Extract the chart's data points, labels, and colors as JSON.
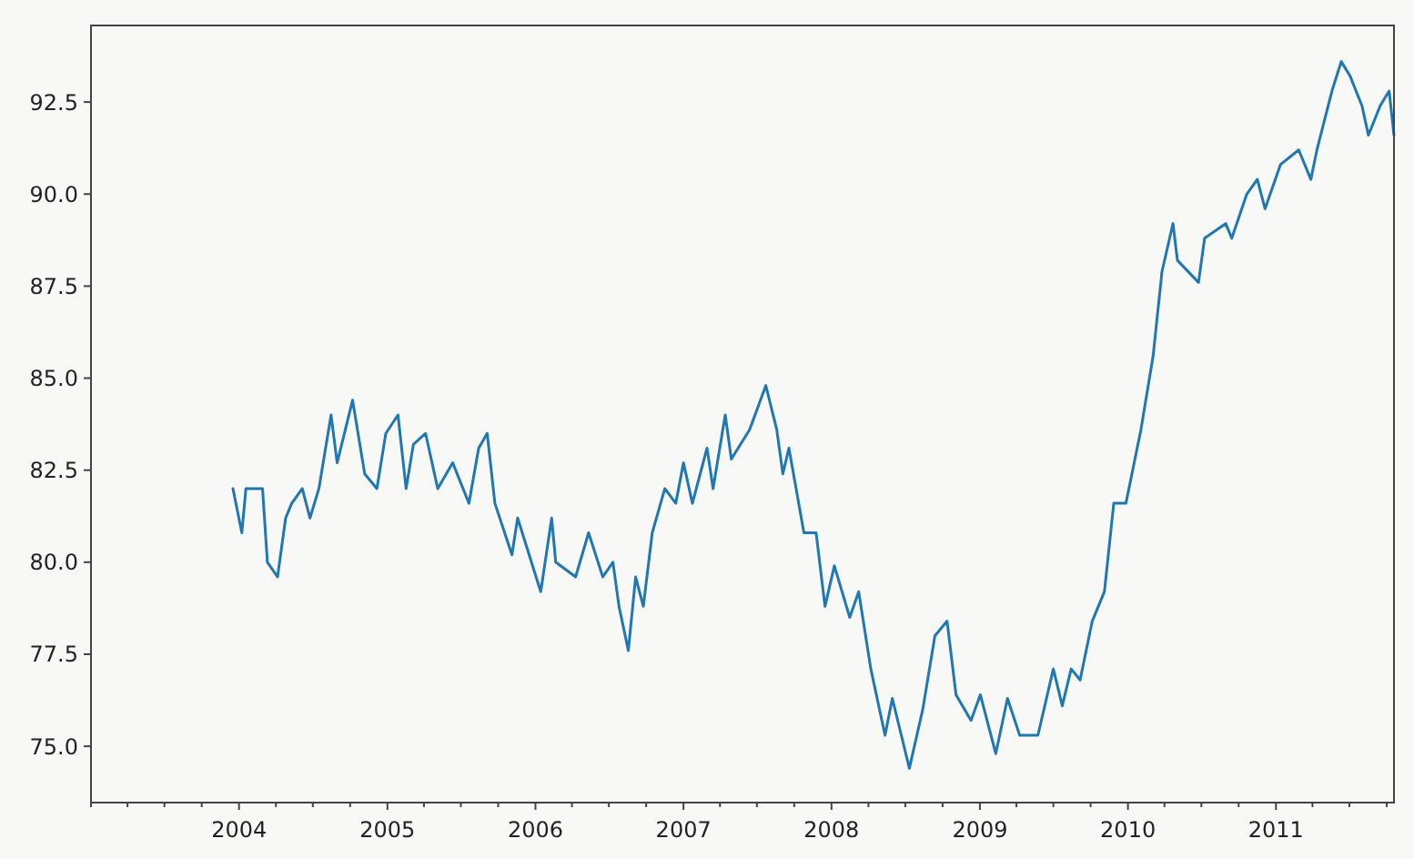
{
  "chart_data": {
    "type": "line",
    "x": [
      "2003-12-17",
      "2004-01-08",
      "2004-01-18",
      "2004-02-28",
      "2004-03-11",
      "2004-04-05",
      "2004-04-25",
      "2004-05-10",
      "2004-06-05",
      "2004-06-24",
      "2004-07-16",
      "2004-08-15",
      "2004-08-30",
      "2004-10-07",
      "2004-11-06",
      "2004-12-06",
      "2004-12-28",
      "2005-01-27",
      "2005-02-16",
      "2005-03-06",
      "2005-04-05",
      "2005-05-05",
      "2005-06-11",
      "2005-07-21",
      "2005-08-14",
      "2005-09-04",
      "2005-09-23",
      "2005-11-04",
      "2005-11-18",
      "2006-01-14",
      "2006-02-10",
      "2006-02-20",
      "2006-04-10",
      "2006-05-12",
      "2006-06-16",
      "2006-07-11",
      "2006-07-26",
      "2006-08-18",
      "2006-09-05",
      "2006-09-24",
      "2006-10-16",
      "2006-11-16",
      "2006-12-13",
      "2007-01-01",
      "2007-01-23",
      "2007-02-28",
      "2007-03-15",
      "2007-04-14",
      "2007-04-29",
      "2007-06-13",
      "2007-07-23",
      "2007-08-19",
      "2007-09-03",
      "2007-09-18",
      "2007-10-25",
      "2007-11-24",
      "2007-12-16",
      "2008-01-08",
      "2008-02-15",
      "2008-03-08",
      "2008-04-07",
      "2008-05-12",
      "2008-05-30",
      "2008-07-11",
      "2008-08-13",
      "2008-09-12",
      "2008-10-12",
      "2008-11-03",
      "2008-12-10",
      "2009-01-02",
      "2009-02-09",
      "2009-03-10",
      "2009-04-09",
      "2009-05-24",
      "2009-07-01",
      "2009-07-23",
      "2009-08-14",
      "2009-09-05",
      "2009-10-05",
      "2009-11-04",
      "2009-11-27",
      "2009-12-27",
      "2010-02-02",
      "2010-03-04",
      "2010-03-26",
      "2010-04-22",
      "2010-05-03",
      "2010-06-24",
      "2010-07-09",
      "2010-08-30",
      "2010-09-14",
      "2010-10-21",
      "2010-11-16",
      "2010-12-05",
      "2011-01-12",
      "2011-02-26",
      "2011-03-28",
      "2011-04-12",
      "2011-05-19",
      "2011-06-11",
      "2011-07-03",
      "2011-08-01",
      "2011-08-17",
      "2011-09-15",
      "2011-10-07",
      "2011-10-19"
    ],
    "series": [
      {
        "color": "#1f77b4",
        "values": [
          82.0,
          80.8,
          82.0,
          82.0,
          80.0,
          79.6,
          81.2,
          81.6,
          82.0,
          81.2,
          82.0,
          84.0,
          82.7,
          84.4,
          82.4,
          82.0,
          83.5,
          84.0,
          82.0,
          83.2,
          83.5,
          82.0,
          82.7,
          81.6,
          83.1,
          83.5,
          81.6,
          80.2,
          81.2,
          79.2,
          81.2,
          80.0,
          79.6,
          80.8,
          79.6,
          80.0,
          78.8,
          77.6,
          79.6,
          78.8,
          80.8,
          82.0,
          81.6,
          82.7,
          81.6,
          83.1,
          82.0,
          84.0,
          82.8,
          83.6,
          84.8,
          83.6,
          82.4,
          83.1,
          80.8,
          80.8,
          78.8,
          79.9,
          78.5,
          79.2,
          77.1,
          75.3,
          76.3,
          74.4,
          76.0,
          78.0,
          78.4,
          76.4,
          75.7,
          76.4,
          74.8,
          76.3,
          75.3,
          75.3,
          77.1,
          76.1,
          77.1,
          76.8,
          78.4,
          79.2,
          81.6,
          81.6,
          83.6,
          85.6,
          87.9,
          89.2,
          88.2,
          87.6,
          88.8,
          89.2,
          88.8,
          90.0,
          90.4,
          89.6,
          90.8,
          91.2,
          90.4,
          91.2,
          92.8,
          93.6,
          93.2,
          92.4,
          91.6,
          92.4,
          92.8,
          91.6
        ]
      }
    ],
    "xlim": [
      "2003-01-01",
      "2011-10-19"
    ],
    "ylim": [
      73.47,
      94.58
    ],
    "xticks": [
      {
        "value": "2003-01-01",
        "label": null
      },
      {
        "value": "2003-04-01",
        "label": null
      },
      {
        "value": "2003-07-01",
        "label": null
      },
      {
        "value": "2003-10-01",
        "label": null
      },
      {
        "value": "2004-01-01",
        "label": "2004"
      },
      {
        "value": "2004-04-01",
        "label": null
      },
      {
        "value": "2004-07-01",
        "label": null
      },
      {
        "value": "2004-10-01",
        "label": null
      },
      {
        "value": "2005-01-01",
        "label": "2005"
      },
      {
        "value": "2005-04-01",
        "label": null
      },
      {
        "value": "2005-07-01",
        "label": null
      },
      {
        "value": "2005-10-01",
        "label": null
      },
      {
        "value": "2006-01-01",
        "label": "2006"
      },
      {
        "value": "2006-04-01",
        "label": null
      },
      {
        "value": "2006-07-01",
        "label": null
      },
      {
        "value": "2006-10-01",
        "label": null
      },
      {
        "value": "2007-01-01",
        "label": "2007"
      },
      {
        "value": "2007-04-01",
        "label": null
      },
      {
        "value": "2007-07-01",
        "label": null
      },
      {
        "value": "2007-10-01",
        "label": null
      },
      {
        "value": "2008-01-01",
        "label": "2008"
      },
      {
        "value": "2008-04-01",
        "label": null
      },
      {
        "value": "2008-07-01",
        "label": null
      },
      {
        "value": "2008-10-01",
        "label": null
      },
      {
        "value": "2009-01-01",
        "label": "2009"
      },
      {
        "value": "2009-04-01",
        "label": null
      },
      {
        "value": "2009-07-01",
        "label": null
      },
      {
        "value": "2009-10-01",
        "label": null
      },
      {
        "value": "2010-01-01",
        "label": "2010"
      },
      {
        "value": "2010-04-01",
        "label": null
      },
      {
        "value": "2010-07-01",
        "label": null
      },
      {
        "value": "2010-10-01",
        "label": null
      },
      {
        "value": "2011-01-01",
        "label": "2011"
      },
      {
        "value": "2011-04-01",
        "label": null
      },
      {
        "value": "2011-07-01",
        "label": null
      },
      {
        "value": "2011-10-01",
        "label": null
      }
    ],
    "yticks": [
      {
        "value": 75,
        "label": "75.0"
      },
      {
        "value": 77.5,
        "label": "77.5"
      },
      {
        "value": 80,
        "label": "80.0"
      },
      {
        "value": 82.5,
        "label": "82.5"
      },
      {
        "value": 85,
        "label": "85.0"
      },
      {
        "value": 87.5,
        "label": "87.5"
      },
      {
        "value": 90,
        "label": "90.0"
      },
      {
        "value": 92.5,
        "label": "92.5"
      }
    ]
  }
}
